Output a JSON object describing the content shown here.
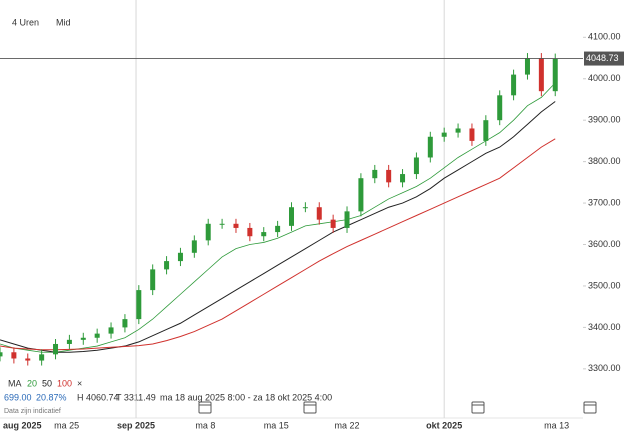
{
  "chart_data": {
    "type": "candlestick",
    "interval": "4 Uren",
    "price_type": "Mid",
    "x": [
      0,
      1,
      2,
      3,
      4,
      5,
      6,
      7,
      8,
      9,
      10,
      11,
      12,
      13,
      14,
      15,
      16,
      17,
      18,
      19,
      20,
      21,
      22,
      23,
      24,
      25,
      26,
      27,
      28,
      29,
      30,
      31,
      32,
      33,
      34,
      35,
      36,
      37,
      38,
      39,
      40
    ],
    "open": [
      3330,
      3340,
      3325,
      3320,
      3335,
      3360,
      3370,
      3375,
      3385,
      3400,
      3420,
      3490,
      3540,
      3560,
      3580,
      3610,
      3650,
      3650,
      3640,
      3620,
      3630,
      3645,
      3690,
      3690,
      3660,
      3640,
      3680,
      3760,
      3780,
      3750,
      3770,
      3810,
      3860,
      3870,
      3880,
      3850,
      3900,
      3960,
      4010,
      4050,
      3970
    ],
    "high": [
      3352,
      3352,
      3337,
      3347,
      3372,
      3382,
      3387,
      3397,
      3412,
      3432,
      3502,
      3552,
      3572,
      3592,
      3622,
      3662,
      3662,
      3662,
      3652,
      3642,
      3657,
      3702,
      3702,
      3702,
      3672,
      3692,
      3772,
      3792,
      3792,
      3782,
      3822,
      3872,
      3882,
      3892,
      3892,
      3912,
      3972,
      4022,
      4062,
      4062,
      4060.74
    ],
    "low": [
      3318,
      3313,
      3308,
      3308,
      3323,
      3348,
      3358,
      3363,
      3373,
      3388,
      3408,
      3478,
      3528,
      3548,
      3568,
      3598,
      3638,
      3628,
      3608,
      3608,
      3618,
      3633,
      3678,
      3648,
      3628,
      3628,
      3668,
      3748,
      3738,
      3738,
      3758,
      3798,
      3848,
      3858,
      3838,
      3838,
      3888,
      3948,
      3998,
      3958,
      3958
    ],
    "close": [
      3340,
      3325,
      3320,
      3335,
      3360,
      3370,
      3375,
      3385,
      3400,
      3420,
      3490,
      3540,
      3560,
      3580,
      3610,
      3650,
      3650,
      3640,
      3620,
      3630,
      3645,
      3690,
      3690,
      3660,
      3640,
      3680,
      3760,
      3780,
      3750,
      3770,
      3810,
      3860,
      3870,
      3880,
      3850,
      3900,
      3960,
      4010,
      4050,
      3970,
      4048.73
    ],
    "up_color": "#2e9a3a",
    "down_color": "#d0312d",
    "ma_label": "MA",
    "series": [
      {
        "name": "20",
        "color": "#2e9a3a",
        "values": [
          3360,
          3350,
          3345,
          3340,
          3340,
          3345,
          3350,
          3355,
          3365,
          3375,
          3395,
          3420,
          3450,
          3480,
          3510,
          3540,
          3570,
          3590,
          3600,
          3605,
          3615,
          3630,
          3645,
          3650,
          3655,
          3660,
          3670,
          3690,
          3710,
          3725,
          3740,
          3760,
          3785,
          3810,
          3830,
          3850,
          3870,
          3900,
          3935,
          3955,
          3990
        ]
      },
      {
        "name": "50",
        "color": "#222222",
        "values": [
          3370,
          3360,
          3350,
          3345,
          3340,
          3340,
          3342,
          3345,
          3350,
          3355,
          3365,
          3380,
          3395,
          3410,
          3430,
          3450,
          3470,
          3490,
          3510,
          3530,
          3550,
          3570,
          3590,
          3610,
          3630,
          3645,
          3660,
          3675,
          3690,
          3700,
          3715,
          3735,
          3760,
          3780,
          3800,
          3820,
          3835,
          3860,
          3890,
          3920,
          3945
        ]
      },
      {
        "name": "100",
        "color": "#d0312d",
        "values": [
          3355,
          3350,
          3348,
          3346,
          3346,
          3347,
          3348,
          3350,
          3352,
          3354,
          3356,
          3360,
          3368,
          3378,
          3390,
          3405,
          3420,
          3440,
          3460,
          3480,
          3500,
          3520,
          3540,
          3560,
          3578,
          3595,
          3610,
          3625,
          3640,
          3655,
          3670,
          3685,
          3700,
          3715,
          3730,
          3745,
          3760,
          3785,
          3810,
          3835,
          3855
        ]
      }
    ],
    "ma_remove": "×",
    "info": [
      "699.00",
      "20.87%",
      "H 4060.74",
      "T 3311.49",
      "ma 18 aug 2025 8:00 - za 18 okt 2025 4:00"
    ],
    "disclaimer": "Data zijn indicatief",
    "xlim": [
      0,
      42
    ],
    "xticks": [
      {
        "value": 1.6,
        "label": "aug 2025"
      },
      {
        "value": 4.8,
        "label": "ma 25"
      },
      {
        "value": 9.8,
        "label": "sep 2025"
      },
      {
        "value": 14.8,
        "label": "ma 8"
      },
      {
        "value": 19.9,
        "label": "ma 15"
      },
      {
        "value": 25,
        "label": "ma 22"
      },
      {
        "value": 32,
        "label": "okt 2025"
      },
      {
        "value": 40.1,
        "label": "ma 13"
      }
    ],
    "ylim": [
      3220,
      4190
    ],
    "yticks": [
      {
        "value": 3300,
        "label": "3300.00"
      },
      {
        "value": 3400,
        "label": "3400.00"
      },
      {
        "value": 3500,
        "label": "3500.00"
      },
      {
        "value": 3600,
        "label": "3600.00"
      },
      {
        "value": 3700,
        "label": "3700.00"
      },
      {
        "value": 3800,
        "label": "3800.00"
      },
      {
        "value": 3900,
        "label": "3900.00"
      },
      {
        "value": 4000,
        "label": "4000.00"
      },
      {
        "value": 4100,
        "label": "4100.00"
      }
    ]
  }
}
